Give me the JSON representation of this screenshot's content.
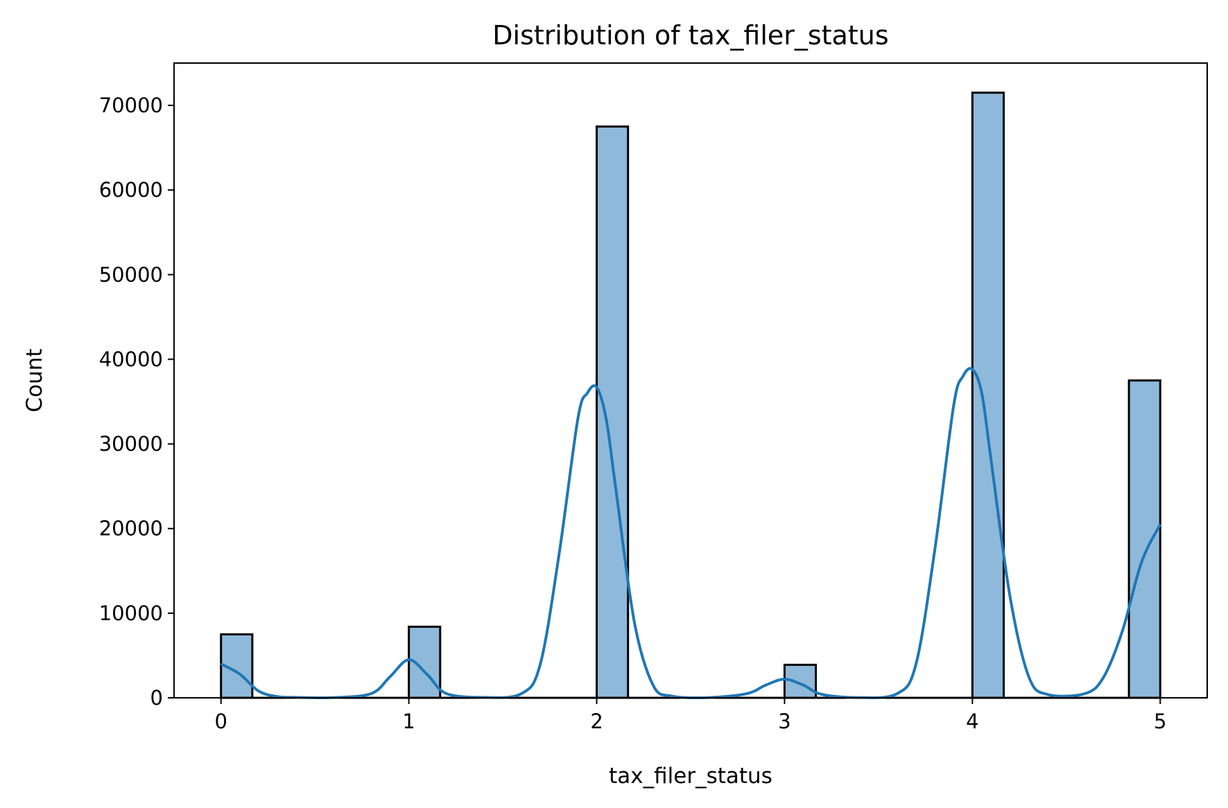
{
  "chart_data": {
    "type": "bar",
    "title": "Distribution of tax_filer_status",
    "xlabel": "tax_filer_status",
    "ylabel": "Count",
    "xlim": [
      -0.25,
      5.25
    ],
    "ylim": [
      0,
      75000
    ],
    "xticks": [
      0,
      1,
      2,
      3,
      4,
      5
    ],
    "yticks": [
      0,
      10000,
      20000,
      30000,
      40000,
      50000,
      60000,
      70000
    ],
    "bin_width": 0.1667,
    "bins": [
      {
        "x": 0,
        "value": 7500
      },
      {
        "x": 1,
        "value": 8400
      },
      {
        "x": 2,
        "value": 67500
      },
      {
        "x": 3,
        "value": 3900
      },
      {
        "x": 4,
        "value": 71500
      },
      {
        "x": 4.8333,
        "value": 37500
      }
    ],
    "kde": {
      "x": [
        0.0,
        0.1,
        0.2,
        0.3,
        0.4,
        0.6,
        0.8,
        0.9,
        1.0,
        1.1,
        1.2,
        1.4,
        1.6,
        1.7,
        1.8,
        1.9,
        1.95,
        2.0,
        2.05,
        2.1,
        2.2,
        2.3,
        2.4,
        2.6,
        2.8,
        2.9,
        3.0,
        3.1,
        3.2,
        3.4,
        3.6,
        3.7,
        3.8,
        3.9,
        3.95,
        4.0,
        4.05,
        4.1,
        4.2,
        4.3,
        4.4,
        4.6,
        4.7,
        4.8,
        4.9,
        5.0
      ],
      "y": [
        4000,
        2800,
        800,
        150,
        50,
        30,
        500,
        2500,
        4500,
        2700,
        500,
        50,
        500,
        4000,
        17000,
        33000,
        36000,
        36700,
        33000,
        25000,
        9000,
        1500,
        200,
        30,
        500,
        1500,
        2200,
        1500,
        400,
        30,
        500,
        4000,
        17500,
        34500,
        38000,
        38800,
        36000,
        28000,
        12000,
        2500,
        400,
        500,
        2500,
        8000,
        16000,
        20500
      ]
    },
    "colors": {
      "bar_fill": "#8fb9da",
      "bar_edge": "#000000",
      "kde_line": "#1f77b4"
    },
    "legend": "none",
    "grid": false
  }
}
